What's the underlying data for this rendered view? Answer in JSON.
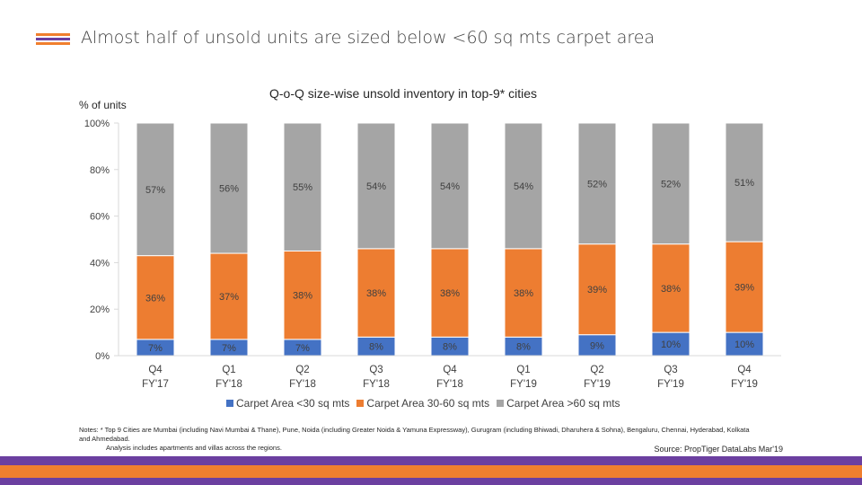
{
  "header": {
    "title": "Almost half of unsold units are sized below <60 sq mts carpet area",
    "logo_colors": [
      "#f07f2e",
      "#6b3fa0",
      "#f07f2e"
    ]
  },
  "chart_data": {
    "type": "bar",
    "stacked": true,
    "title": "Q-o-Q size-wise unsold inventory in top-9* cities",
    "ylabel": "% of units",
    "ylim": [
      0,
      100
    ],
    "yticks": [
      "0%",
      "20%",
      "40%",
      "60%",
      "80%",
      "100%"
    ],
    "categories": [
      "Q4 FY'17",
      "Q1 FY'18",
      "Q2 FY'18",
      "Q3 FY'18",
      "Q4 FY'18",
      "Q1 FY'19",
      "Q2 FY'19",
      "Q3 FY'19",
      "Q4 FY'19"
    ],
    "category_lines": [
      [
        "Q4",
        "FY'17"
      ],
      [
        "Q1",
        "FY'18"
      ],
      [
        "Q2",
        "FY'18"
      ],
      [
        "Q3",
        "FY'18"
      ],
      [
        "Q4",
        "FY'18"
      ],
      [
        "Q1",
        "FY'19"
      ],
      [
        "Q2",
        "FY'19"
      ],
      [
        "Q3",
        "FY'19"
      ],
      [
        "Q4",
        "FY'19"
      ]
    ],
    "series": [
      {
        "name": "Carpet Area <30 sq mts",
        "color": "#4472c4",
        "values": [
          7,
          7,
          7,
          8,
          8,
          8,
          9,
          10,
          10
        ],
        "labels": [
          "7%",
          "7%",
          "7%",
          "8%",
          "8%",
          "8%",
          "9%",
          "10%",
          "10%"
        ]
      },
      {
        "name": "Carpet Area 30-60 sq mts",
        "color": "#ed7d31",
        "values": [
          36,
          37,
          38,
          38,
          38,
          38,
          39,
          38,
          39
        ],
        "labels": [
          "36%",
          "37%",
          "38%",
          "38%",
          "38%",
          "38%",
          "39%",
          "38%",
          "39%"
        ]
      },
      {
        "name": "Carpet Area >60 sq mts",
        "color": "#a5a5a5",
        "values": [
          57,
          56,
          55,
          54,
          54,
          54,
          52,
          52,
          51
        ],
        "labels": [
          "57%",
          "56%",
          "55%",
          "54%",
          "54%",
          "54%",
          "52%",
          "52%",
          "51%"
        ]
      }
    ],
    "legend_position": "bottom",
    "grid": false
  },
  "notes": {
    "line1": "Notes: * Top 9 Cities are Mumbai (including Navi Mumbai & Thane), Pune, Noida (including Greater Noida & Yamuna Expressway), Gurugram (including Bhiwadi, Dharuhera & Sohna), Bengaluru, Chennai, Hyderabad, Kolkata and Ahmedabad.",
    "line2": "Analysis includes apartments and villas across the regions."
  },
  "source": "Source: PropTiger DataLabs Mar'19",
  "footer_colors": [
    "#6b3fa0",
    "#f07f2e",
    "#6b3fa0"
  ]
}
